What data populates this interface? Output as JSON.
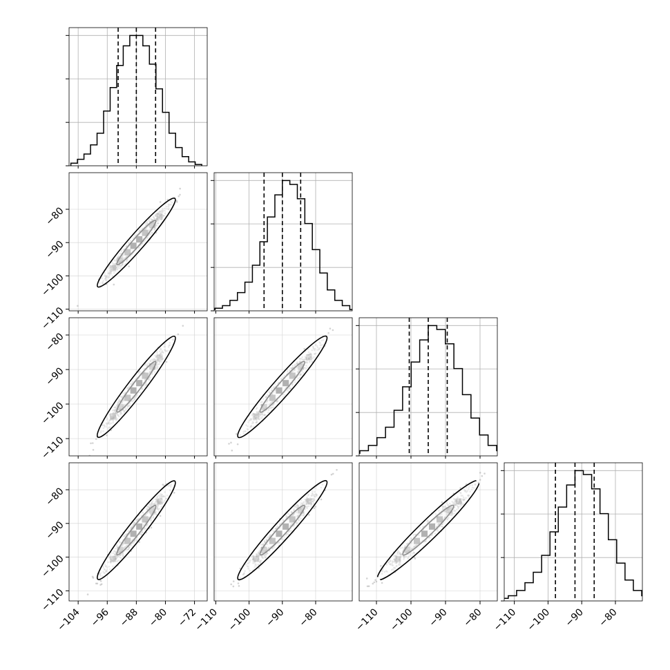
{
  "chart_data": {
    "type": "corner",
    "n_params": 4,
    "grid": true,
    "hist_color": "#000000",
    "contour_color": "#000000",
    "scatter_color": "#808080",
    "parameters": [
      {
        "index": 0,
        "range": [
          -106.5,
          -68.5
        ],
        "ticks": [
          -104,
          -96,
          -88,
          -80,
          -72
        ],
        "tick_labels": [
          "−104",
          "−96",
          "−88",
          "−80",
          "−72"
        ],
        "quantiles": [
          -93.0,
          -88.0,
          -82.7
        ],
        "median": -88.0,
        "sd": 4.0
      },
      {
        "index": 1,
        "range": [
          -110.5,
          -69.0
        ],
        "ticks": [
          -110,
          -100,
          -90,
          -80
        ],
        "tick_labels": [
          "−110",
          "−100",
          "−90",
          "−80"
        ],
        "quantiles": [
          -95.5,
          -90.0,
          -84.5
        ],
        "median": -90.0,
        "sd": 5.0
      },
      {
        "index": 2,
        "range": [
          -115.0,
          -75.0
        ],
        "ticks": [
          -110,
          -100,
          -90,
          -80
        ],
        "tick_labels": [
          "−110",
          "−100",
          "−90",
          "−80"
        ],
        "quantiles": [
          -100.5,
          -95.0,
          -89.5
        ],
        "median": -95.0,
        "sd": 5.5
      },
      {
        "index": 3,
        "range": [
          -113.0,
          -72.0
        ],
        "ticks": [
          -110,
          -100,
          -90,
          -80
        ],
        "tick_labels": [
          "−110",
          "−100",
          "−90",
          "−80"
        ],
        "quantiles": [
          -97.8,
          -92.0,
          -86.3
        ],
        "median": -92.0,
        "sd": 5.5
      }
    ],
    "correlation": 0.97,
    "histograms": [
      [
        0.02,
        0.05,
        0.09,
        0.16,
        0.25,
        0.42,
        0.6,
        0.77,
        0.92,
        1.0,
        1.0,
        0.92,
        0.78,
        0.59,
        0.41,
        0.25,
        0.14,
        0.07,
        0.03,
        0.01
      ],
      [
        0.01,
        0.02,
        0.04,
        0.08,
        0.14,
        0.22,
        0.35,
        0.53,
        0.72,
        0.89,
        1.0,
        0.97,
        0.86,
        0.67,
        0.47,
        0.29,
        0.16,
        0.08,
        0.04,
        0.01
      ],
      [
        0.01,
        0.02,
        0.04,
        0.08,
        0.14,
        0.22,
        0.35,
        0.53,
        0.72,
        0.89,
        1.0,
        0.97,
        0.86,
        0.67,
        0.47,
        0.29,
        0.16,
        0.08,
        0.04,
        0.01
      ],
      [
        0.01,
        0.02,
        0.04,
        0.08,
        0.14,
        0.22,
        0.35,
        0.53,
        0.72,
        0.89,
        1.0,
        0.97,
        0.86,
        0.67,
        0.47,
        0.29,
        0.16,
        0.08,
        0.04,
        0.01
      ]
    ],
    "contour_levels_sigma": [
      1.0,
      2.0
    ],
    "n_scatter_points": 900
  }
}
